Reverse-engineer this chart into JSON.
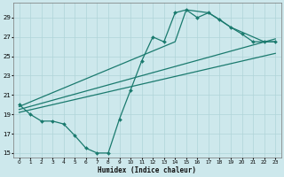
{
  "xlabel": "Humidex (Indice chaleur)",
  "bg_color": "#cde8ec",
  "grid_color": "#b0d4d8",
  "line_color": "#1a7a6e",
  "xlim": [
    -0.5,
    23.5
  ],
  "ylim": [
    14.5,
    30.5
  ],
  "yticks": [
    15,
    17,
    19,
    21,
    23,
    25,
    27,
    29
  ],
  "xticks": [
    0,
    1,
    2,
    3,
    4,
    5,
    6,
    7,
    8,
    9,
    10,
    11,
    12,
    13,
    14,
    15,
    16,
    17,
    18,
    19,
    20,
    21,
    22,
    23
  ],
  "series": [
    {
      "x": [
        0,
        1,
        2,
        3,
        4,
        5,
        6,
        7,
        8,
        9,
        10,
        11,
        12,
        13,
        14,
        15,
        16,
        17,
        18,
        19,
        20,
        21,
        22,
        23
      ],
      "y": [
        20.0,
        19.0,
        18.3,
        18.3,
        18.0,
        16.8,
        15.5,
        15.0,
        15.0,
        18.5,
        21.5,
        24.5,
        27.0,
        26.5,
        29.5,
        29.8,
        29.0,
        29.5,
        28.8,
        28.0,
        27.3,
        26.5,
        26.5,
        26.5
      ],
      "marker": "D",
      "markersize": 2.0,
      "linewidth": 0.9
    },
    {
      "x": [
        0,
        14,
        15,
        17,
        19,
        22,
        23
      ],
      "y": [
        19.8,
        26.5,
        29.8,
        29.5,
        28.0,
        26.5,
        26.5
      ],
      "marker": null,
      "linewidth": 0.9
    },
    {
      "x": [
        0,
        23
      ],
      "y": [
        19.5,
        26.8
      ],
      "marker": null,
      "linewidth": 0.9
    },
    {
      "x": [
        0,
        23
      ],
      "y": [
        19.2,
        25.3
      ],
      "marker": null,
      "linewidth": 0.9
    }
  ]
}
